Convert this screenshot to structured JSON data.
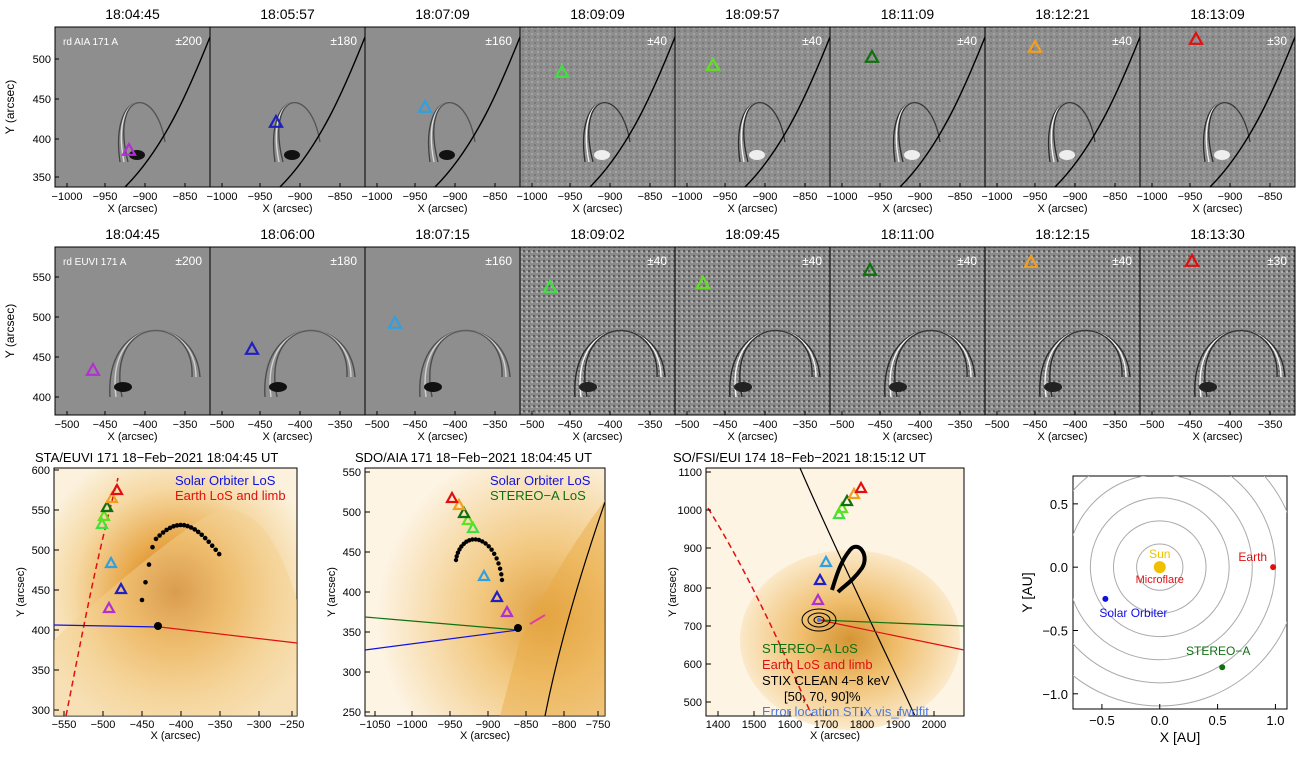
{
  "figure": {
    "row1": {
      "times": [
        "18:04:45",
        "18:05:57",
        "18:07:09",
        "18:09:09",
        "18:09:57",
        "18:11:09",
        "18:12:21",
        "18:13:09"
      ],
      "scales": [
        "±200",
        "±180",
        "±160",
        "±40",
        "±40",
        "±40",
        "±40",
        "±30"
      ],
      "instrument_label": "rd AIA 171 A",
      "ylabel": "Y (arcsec)",
      "xlabel": "X (arcsec)",
      "yticks": [
        "500",
        "450",
        "400",
        "350"
      ],
      "xticks": [
        "−1000",
        "−950",
        "−900",
        "−850"
      ],
      "marker_colors": [
        "#b030d0",
        "#2020c0",
        "#30a0e0",
        "#40e040",
        "#60e020",
        "#107010",
        "#f0a020",
        "#e01010"
      ]
    },
    "row2": {
      "times": [
        "18:04:45",
        "18:06:00",
        "18:07:15",
        "18:09:02",
        "18:09:45",
        "18:11:00",
        "18:12:15",
        "18:13:30"
      ],
      "scales": [
        "±200",
        "±180",
        "±160",
        "±40",
        "±40",
        "±40",
        "±40",
        "±30"
      ],
      "instrument_label": "rd EUVI 171 A",
      "ylabel": "Y (arcsec)",
      "xlabel": "X (arcsec)",
      "yticks": [
        "550",
        "500",
        "450",
        "400"
      ],
      "xticks": [
        "−500",
        "−450",
        "−400",
        "−350"
      ]
    },
    "panelA": {
      "title": "STA/EUVI 171 18−Feb−2021 18:04:45 UT",
      "legend": [
        "Solar Orbiter LoS",
        "Earth LoS and limb"
      ],
      "legend_colors": [
        "#1010e0",
        "#e01010"
      ],
      "ylabel": "Y (arcsec)",
      "xlabel": "X (arcsec)",
      "yticks": [
        "600",
        "550",
        "500",
        "450",
        "400",
        "350",
        "300"
      ],
      "xticks": [
        "−550",
        "−500",
        "−450",
        "−400",
        "−350",
        "−300",
        "−250"
      ]
    },
    "panelB": {
      "title": "SDO/AIA 171 18−Feb−2021 18:04:45 UT",
      "legend": [
        "Solar Orbiter LoS",
        "STEREO−A LoS"
      ],
      "legend_colors": [
        "#1010e0",
        "#107010"
      ],
      "ylabel": "Y (arcsec)",
      "xlabel": "X (arcsec)",
      "yticks": [
        "550",
        "500",
        "450",
        "400",
        "350",
        "300",
        "250"
      ],
      "xticks": [
        "−1050",
        "−1000",
        "−950",
        "−900",
        "−850",
        "−800",
        "−750"
      ]
    },
    "panelC": {
      "title": "SO/FSI/EUI 174 18−Feb−2021 18:15:12 UT",
      "legend": [
        "STEREO−A LoS",
        "Earth LoS and limb",
        "STIX CLEAN 4−8 keV",
        "[50, 70, 90]%",
        "Error location STIX vis_fwdfit"
      ],
      "legend_colors": [
        "#107010",
        "#e01010",
        "#000000",
        "#000000",
        "#4a7ae0"
      ],
      "ylabel": "Y (arcsec)",
      "xlabel": "X (arcsec)",
      "yticks": [
        "1100",
        "1000",
        "900",
        "800",
        "700",
        "600",
        "500"
      ],
      "xticks": [
        "1400",
        "1500",
        "1600",
        "1700",
        "1800",
        "1900",
        "2000"
      ]
    },
    "panelD": {
      "ylabel": "Y [AU]",
      "xlabel": "X [AU]",
      "yticks": [
        "0.5",
        "0.0",
        "−0.5",
        "−1.0"
      ],
      "xticks": [
        "−0.5",
        "0.0",
        "0.5",
        "1.0"
      ],
      "labels": {
        "sun": "Sun",
        "microflare": "Microflare",
        "earth": "Earth",
        "solar_orbiter": "Solar Orbiter",
        "stereo_a": "STEREO−A"
      },
      "chart_data": {
        "type": "scatter",
        "xlim": [
          -0.75,
          1.1
        ],
        "ylim": [
          -1.12,
          0.72
        ],
        "points": [
          {
            "label": "Sun",
            "x": 0.0,
            "y": 0.0,
            "color": "#f0c000"
          },
          {
            "label": "Earth",
            "x": 0.98,
            "y": 0.0,
            "color": "#e01010"
          },
          {
            "label": "Solar Orbiter",
            "x": -0.47,
            "y": -0.25,
            "color": "#1010e0"
          },
          {
            "label": "STEREO−A",
            "x": 0.54,
            "y": -0.79,
            "color": "#107010"
          }
        ],
        "circles_au": [
          0.2,
          0.4,
          0.6,
          0.8,
          1.0,
          1.2
        ]
      }
    }
  }
}
